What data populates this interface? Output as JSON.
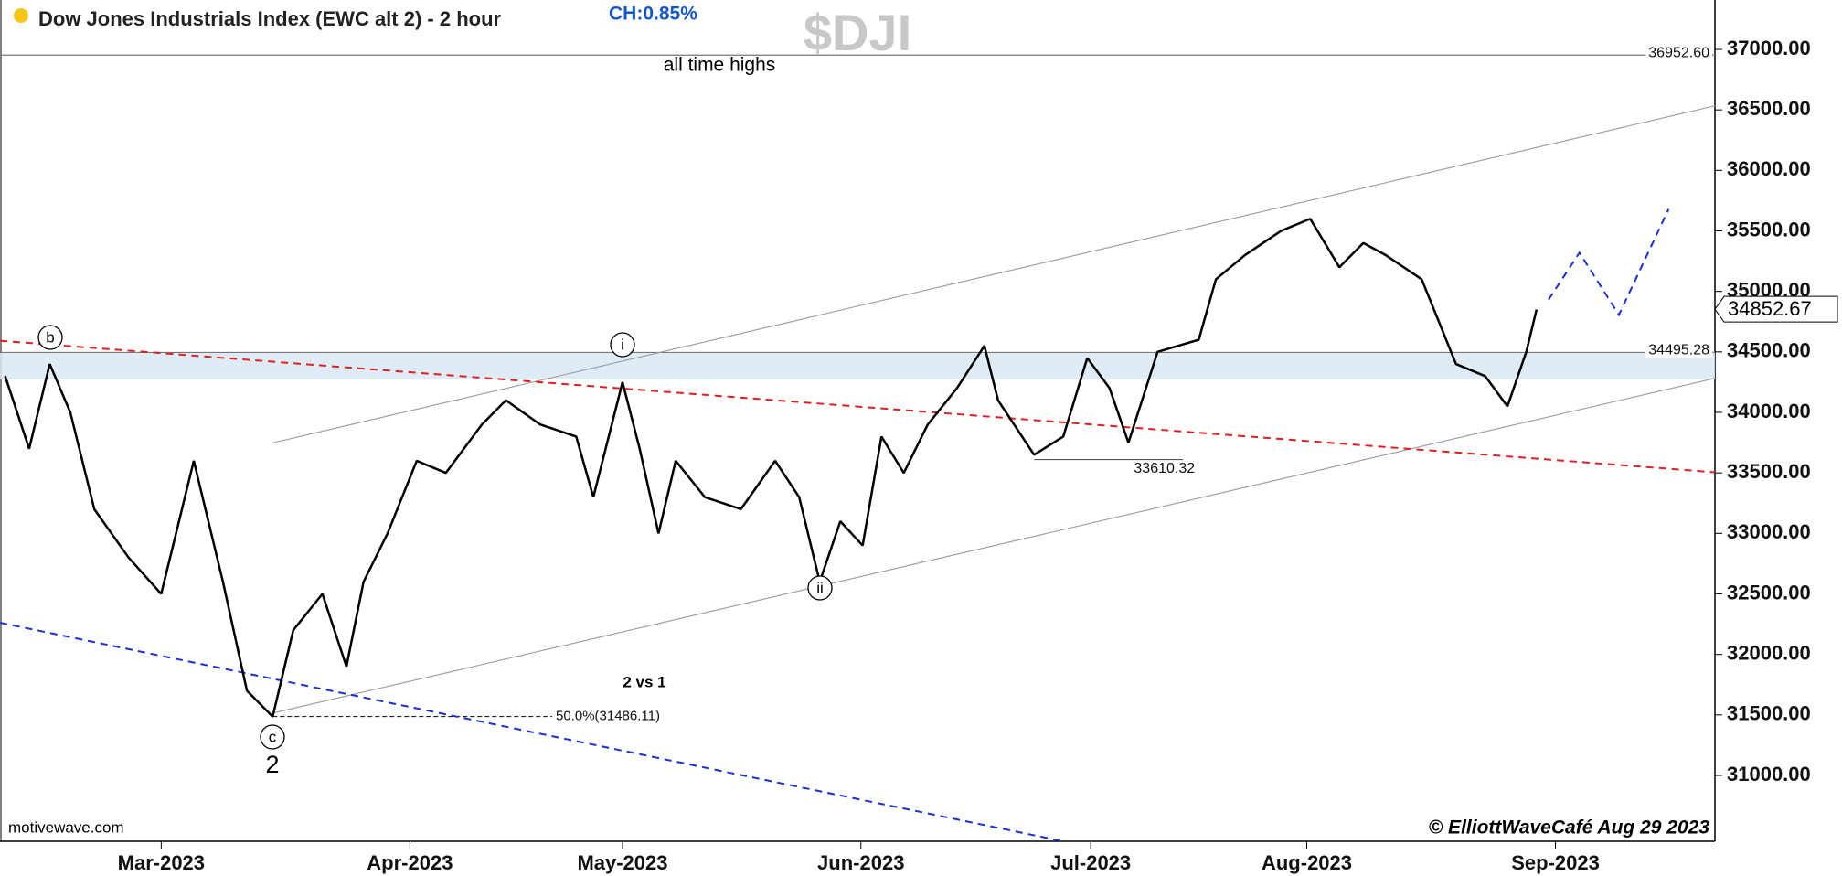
{
  "chart_data": {
    "type": "line",
    "title": "Dow Jones Industrials Index (EWC alt 2) - 2 hour",
    "change_label": "CH:0.85%",
    "symbol": "$DJI",
    "watermark_left": "motivewave.com",
    "watermark_right": "© ElliottWaveCafé Aug 29 2023",
    "annotations": [
      "all time highs",
      "2 vs 1"
    ],
    "fib_label": "50.0%(31486.11)",
    "fib_level": 31486.11,
    "last_price": 34852.67,
    "levels": [
      {
        "value": 36952.6,
        "label": "36952.60"
      },
      {
        "value": 34495.28,
        "label": "34495.28"
      },
      {
        "value": 33610.32,
        "label": "33610.32"
      }
    ],
    "zone": [
      34272,
      34495.28
    ],
    "wave_labels": [
      "b",
      "i",
      "ii",
      "c",
      "2"
    ],
    "color": "#000000",
    "x": [
      0.3,
      1.7,
      2.9,
      4.1,
      5.5,
      7.5,
      9.4,
      11.3,
      13.0,
      14.4,
      15.9,
      17.1,
      18.8,
      20.2,
      21.2,
      22.6,
      24.3,
      26.0,
      28.1,
      29.5,
      31.5,
      33.6,
      34.6,
      36.3,
      37.3,
      38.4,
      39.4,
      41.1,
      43.2,
      45.2,
      46.6,
      47.8,
      49.0,
      50.3,
      51.4,
      52.7,
      54.1,
      55.8,
      57.4,
      58.2,
      60.3,
      62.0,
      63.4,
      64.7,
      65.8,
      67.5,
      69.9,
      70.9,
      72.6,
      74.7,
      76.4,
      78.1,
      79.5,
      80.8,
      82.9,
      84.9,
      86.6,
      87.9,
      89.0,
      89.6
    ],
    "values": [
      34300,
      33700,
      34400,
      34000,
      33200,
      32800,
      32500,
      33600,
      32600,
      31700,
      31486,
      32200,
      32500,
      31900,
      32600,
      33000,
      33600,
      33500,
      33900,
      34100,
      33900,
      33800,
      33300,
      34250,
      33700,
      33000,
      33600,
      33300,
      33200,
      33600,
      33300,
      32600,
      33100,
      32900,
      33800,
      33500,
      33900,
      34200,
      34550,
      34100,
      33650,
      33800,
      34450,
      34200,
      33750,
      34500,
      34600,
      35100,
      35300,
      35500,
      35600,
      35200,
      35400,
      35300,
      35100,
      34400,
      34300,
      34050,
      34500,
      34850
    ],
    "trend_lines": [
      {
        "color": "#a0a0a0",
        "dash": false,
        "points": [
          [
            15.9,
            33748
          ],
          [
            100,
            36534
          ]
        ]
      },
      {
        "color": "#a0a0a0",
        "dash": false,
        "points": [
          [
            15.9,
            31515
          ],
          [
            100,
            34282
          ]
        ]
      },
      {
        "color": "#e02020",
        "dash": true,
        "points": [
          [
            0,
            34592
          ],
          [
            100,
            33505
          ]
        ]
      },
      {
        "color": "#1a2fd6",
        "dash": true,
        "points": [
          [
            0,
            32262
          ],
          [
            62,
            30456
          ]
        ]
      },
      {
        "color": "#1a2fd6",
        "dash": true,
        "points": [
          [
            90.3,
            34932
          ],
          [
            92.1,
            35320
          ],
          [
            94.4,
            34806
          ],
          [
            97.3,
            35680
          ]
        ]
      }
    ],
    "xlim": [
      0,
      100
    ],
    "xticks": [
      {
        "value": 9.4,
        "label": "Mar-2023"
      },
      {
        "value": 23.9,
        "label": "Apr-2023"
      },
      {
        "value": 36.3,
        "label": "May-2023"
      },
      {
        "value": 50.2,
        "label": "Jun-2023"
      },
      {
        "value": 63.6,
        "label": "Jul-2023"
      },
      {
        "value": 76.2,
        "label": "Aug-2023"
      },
      {
        "value": 90.7,
        "label": "Sep-2023"
      }
    ],
    "ylim": [
      30456,
      37408
    ],
    "yticks": [
      {
        "value": 31000,
        "label": "31000.00"
      },
      {
        "value": 31500,
        "label": "31500.00"
      },
      {
        "value": 32000,
        "label": "32000.00"
      },
      {
        "value": 32500,
        "label": "32500.00"
      },
      {
        "value": 33000,
        "label": "33000.00"
      },
      {
        "value": 33500,
        "label": "33500.00"
      },
      {
        "value": 34000,
        "label": "34000.00"
      },
      {
        "value": 34500,
        "label": "34500.00"
      },
      {
        "value": 35000,
        "label": "35000.00"
      },
      {
        "value": 35500,
        "label": "35500.00"
      },
      {
        "value": 36000,
        "label": "36000.00"
      },
      {
        "value": 36500,
        "label": "36500.00"
      },
      {
        "value": 37000,
        "label": "37000.00"
      }
    ]
  }
}
